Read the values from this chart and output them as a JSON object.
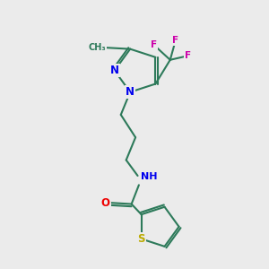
{
  "background_color": "#ebebeb",
  "bond_color": "#2d7a5a",
  "bond_width": 1.5,
  "atom_colors": {
    "N": "#0000ee",
    "O": "#ee0000",
    "S": "#bbaa00",
    "F": "#cc00aa",
    "C": "#2d7a5a",
    "H": "#666688"
  },
  "figsize": [
    3.0,
    3.0
  ],
  "dpi": 100
}
